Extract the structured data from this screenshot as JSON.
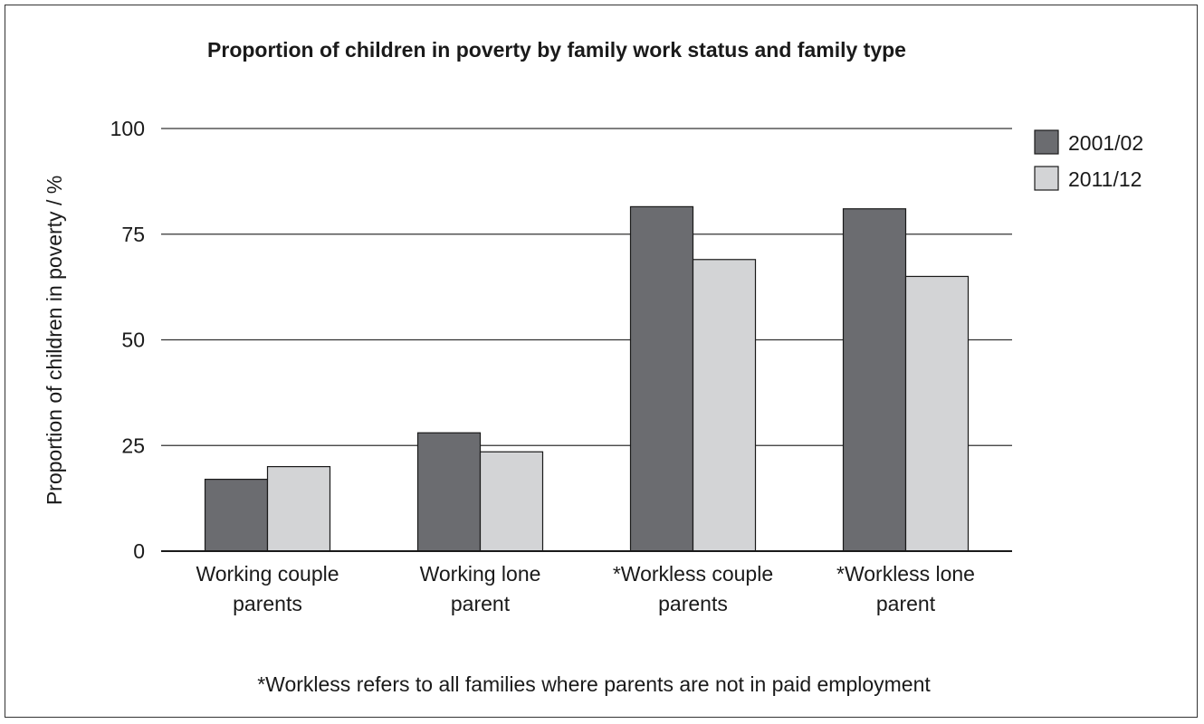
{
  "chart_data": {
    "type": "bar",
    "title": "Proportion of children in poverty by family work status and family type",
    "ylabel": "Proportion of children in poverty / %",
    "xlabel": "",
    "ylim": [
      0,
      100
    ],
    "yticks": [
      0,
      25,
      50,
      75,
      100
    ],
    "grid": true,
    "legend_position": "top-right",
    "categories": [
      [
        "Working couple",
        "parents"
      ],
      [
        "Working lone",
        "parent"
      ],
      [
        "*Workless couple",
        "parents"
      ],
      [
        "*Workless lone",
        "parent"
      ]
    ],
    "series": [
      {
        "name": "2001/02",
        "color": "#6b6c70",
        "values": [
          17,
          28,
          81.5,
          81
        ]
      },
      {
        "name": "2011/12",
        "color": "#d3d4d6",
        "values": [
          20,
          23.5,
          69,
          65
        ]
      }
    ],
    "footnote": "*Workless refers to all families where parents are not in paid employment"
  }
}
